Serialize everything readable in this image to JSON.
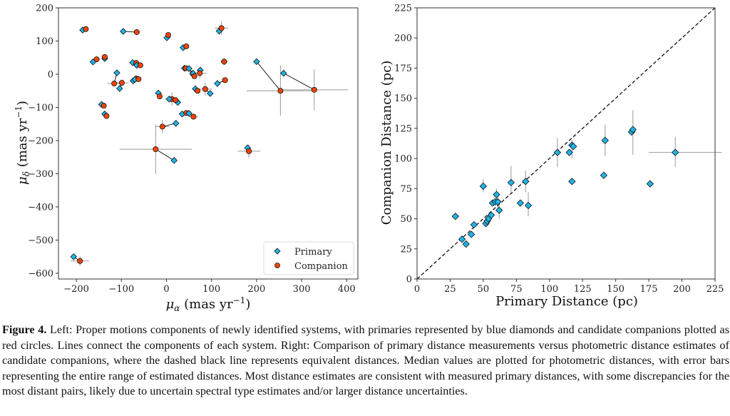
{
  "figure": {
    "caption_label": "Figure 4.",
    "caption_text": " Left: Proper motions components of newly identified systems, with primaries represented by blue diamonds and candidate companions plotted as red circles. Lines connect the components of each system. Right: Comparison of primary distance measurements versus photometric distance estimates of candidate companions, where the dashed black line represents equivalent distances. Median values are plotted for photometric distances, with error bars representing the entire range of estimated distances. Most distance estimates are consistent with measured primary distances, with some discrepancies for the most distant pairs, likely due to uncertain spectral type estimates and/or larger distance uncertainties."
  },
  "colors": {
    "primary": "#1fb4e8",
    "companion": "#f0440c",
    "errorbar": "#9a9a9a",
    "connector": "#222222"
  },
  "chart_data": [
    {
      "type": "scatter",
      "title": "",
      "xlabel_symbol": "μ",
      "xlabel_sub": "α",
      "xlabel_units": " (mas yr",
      "xlabel_sup": "−1",
      "xlabel_close": ")",
      "ylabel_symbol": "μ",
      "ylabel_sub": "δ",
      "ylabel_units": " (mas yr",
      "ylabel_sup": "−1",
      "ylabel_close": ")",
      "xlim": [
        -245,
        422
      ],
      "ylim": [
        -620,
        200
      ],
      "xticks": [
        -200,
        -100,
        0,
        100,
        200,
        300,
        400
      ],
      "xtick_labels": [
        "−200",
        "−100",
        "0",
        "100",
        "200",
        "300",
        "400"
      ],
      "yticks": [
        200,
        100,
        0,
        -100,
        -200,
        -300,
        -400,
        -500,
        -600
      ],
      "ytick_labels": [
        "200",
        "100",
        "0",
        "−100",
        "−200",
        "−300",
        "−400",
        "−500",
        "−600"
      ],
      "grid": false,
      "legend": {
        "placement": "lower-right",
        "entries": [
          "Primary",
          "Companion"
        ]
      },
      "systems": [
        {
          "primary": [
            -186,
            133
          ],
          "companion": [
            -179,
            136
          ]
        },
        {
          "primary": [
            -96,
            129
          ],
          "companion": [
            -66,
            127
          ],
          "cerr": [
            8,
            5
          ]
        },
        {
          "primary": [
            1,
            110
          ],
          "companion": [
            4,
            118
          ]
        },
        {
          "primary": [
            37,
            80
          ],
          "companion": [
            44,
            84
          ]
        },
        {
          "primary": [
            117,
            130
          ],
          "companion": [
            122,
            139
          ],
          "cerr": [
            15,
            20
          ]
        },
        {
          "primary": [
            -163,
            37
          ],
          "companion": [
            -155,
            45
          ],
          "cerr": [
            8,
            5
          ]
        },
        {
          "primary": [
            -137,
            47
          ],
          "companion": [
            -137,
            52
          ]
        },
        {
          "primary": [
            -110,
            4
          ],
          "companion": [
            -116,
            -28
          ],
          "cerr": [
            15,
            5
          ]
        },
        {
          "primary": [
            -104,
            -43
          ],
          "companion": [
            -99,
            -26
          ],
          "cerr": [
            15,
            10
          ]
        },
        {
          "primary": [
            -75,
            35
          ],
          "companion": [
            -67,
            34
          ]
        },
        {
          "primary": [
            -66,
            27
          ],
          "companion": [
            -58,
            27
          ]
        },
        {
          "primary": [
            -74,
            -20
          ],
          "companion": [
            -67,
            -13
          ]
        },
        {
          "primary": [
            -70,
            -16
          ],
          "companion": [
            -62,
            -15
          ]
        },
        {
          "primary": [
            -144,
            -91
          ],
          "companion": [
            -139,
            -95
          ]
        },
        {
          "primary": [
            -137,
            -120
          ],
          "companion": [
            -133,
            -126
          ]
        },
        {
          "primary": [
            -18,
            -57
          ],
          "companion": [
            -15,
            -67
          ]
        },
        {
          "primary": [
            25,
            -85
          ],
          "companion": [
            12,
            -75
          ],
          "cerr": [
            15,
            20
          ]
        },
        {
          "primary": [
            6,
            -75
          ],
          "companion": [
            20,
            -78
          ],
          "cerr": [
            8,
            5
          ]
        },
        {
          "primary": [
            21,
            -148
          ],
          "companion": [
            -9,
            -158
          ],
          "cerr": [
            15,
            20
          ]
        },
        {
          "primary": [
            40,
            18
          ],
          "companion": [
            43,
            18
          ]
        },
        {
          "primary": [
            50,
            17
          ],
          "companion": [
            58,
            2
          ]
        },
        {
          "primary": [
            59,
            3
          ],
          "companion": [
            62,
            -6
          ],
          "cerr": [
            5,
            5
          ]
        },
        {
          "primary": [
            75,
            12
          ],
          "companion": [
            74,
            3
          ],
          "cerr": [
            15,
            15
          ]
        },
        {
          "primary": [
            113,
            -28
          ],
          "companion": [
            130,
            -18
          ]
        },
        {
          "primary": [
            128,
            38
          ],
          "companion": [
            128,
            38
          ]
        },
        {
          "primary": [
            64,
            -44
          ],
          "companion": [
            69,
            -50
          ]
        },
        {
          "primary": [
            97,
            -58
          ],
          "companion": [
            86,
            -45
          ],
          "cerr": [
            15,
            20
          ]
        },
        {
          "primary": [
            35,
            -120
          ],
          "companion": [
            44,
            -117
          ]
        },
        {
          "primary": [
            50,
            -118
          ],
          "companion": [
            60,
            -128
          ],
          "cerr": [
            10,
            5
          ]
        },
        {
          "primary": [
            17,
            -260
          ],
          "companion": [
            -24,
            -226
          ],
          "cerr": [
            80,
            75
          ]
        },
        {
          "primary": [
            -206,
            -550
          ],
          "companion": [
            -192,
            -563
          ],
          "cerr": [
            20,
            15
          ]
        },
        {
          "primary": [
            180,
            -222
          ],
          "companion": [
            183,
            -232
          ],
          "cerr": [
            25,
            20
          ]
        },
        {
          "primary": [
            200,
            38
          ],
          "companion": [
            253,
            -50
          ],
          "cerr": [
            75,
            75
          ]
        },
        {
          "primary": [
            260,
            3
          ],
          "companion": [
            328,
            -47
          ],
          "cerr": [
            75,
            62
          ]
        }
      ]
    },
    {
      "type": "scatter",
      "title": "",
      "xlabel": "Primary Distance (pc)",
      "ylabel": "Companion Distance (pc)",
      "xlim": [
        0,
        225
      ],
      "ylim": [
        0,
        225
      ],
      "xticks": [
        0,
        25,
        50,
        75,
        100,
        125,
        150,
        175,
        200,
        225
      ],
      "yticks": [
        0,
        25,
        50,
        75,
        100,
        125,
        150,
        175,
        200,
        225
      ],
      "grid": false,
      "reference_line": "y = x (dashed black)",
      "points": [
        {
          "x": 29,
          "y": 52
        },
        {
          "x": 34,
          "y": 33
        },
        {
          "x": 37,
          "y": 29
        },
        {
          "x": 41,
          "y": 37
        },
        {
          "x": 43,
          "y": 45
        },
        {
          "x": 50,
          "y": 77,
          "yerr": [
            72,
            83
          ]
        },
        {
          "x": 52,
          "y": 46
        },
        {
          "x": 53,
          "y": 48
        },
        {
          "x": 54,
          "y": 50
        },
        {
          "x": 56,
          "y": 53
        },
        {
          "x": 57,
          "y": 63
        },
        {
          "x": 59,
          "y": 64
        },
        {
          "x": 60,
          "y": 70,
          "yerr": [
            65,
            75
          ]
        },
        {
          "x": 61,
          "y": 64,
          "yerr": [
            58,
            68
          ]
        },
        {
          "x": 62,
          "y": 57,
          "yerr": [
            50,
            65
          ]
        },
        {
          "x": 71,
          "y": 80,
          "yerr": [
            72,
            94
          ]
        },
        {
          "x": 78,
          "y": 63
        },
        {
          "x": 82,
          "y": 81,
          "yerr": [
            72,
            90
          ]
        },
        {
          "x": 84,
          "y": 61,
          "yerr": [
            52,
            72
          ]
        },
        {
          "x": 106,
          "y": 105,
          "yerr": [
            93,
            117
          ]
        },
        {
          "x": 115,
          "y": 105
        },
        {
          "x": 117,
          "y": 111,
          "yerr": [
            100,
            115
          ],
          "xerr": [
            114,
            119
          ]
        },
        {
          "x": 118,
          "y": 110
        },
        {
          "x": 117,
          "y": 81
        },
        {
          "x": 141,
          "y": 86
        },
        {
          "x": 142,
          "y": 115,
          "yerr": [
            102,
            128
          ]
        },
        {
          "x": 162,
          "y": 122,
          "xerr": [
            160,
            165
          ]
        },
        {
          "x": 163,
          "y": 124,
          "yerr": [
            103,
            140
          ]
        },
        {
          "x": 176,
          "y": 79
        },
        {
          "x": 195,
          "y": 105,
          "xerr": [
            175,
            230
          ],
          "yerr": [
            93,
            118
          ]
        }
      ]
    }
  ]
}
